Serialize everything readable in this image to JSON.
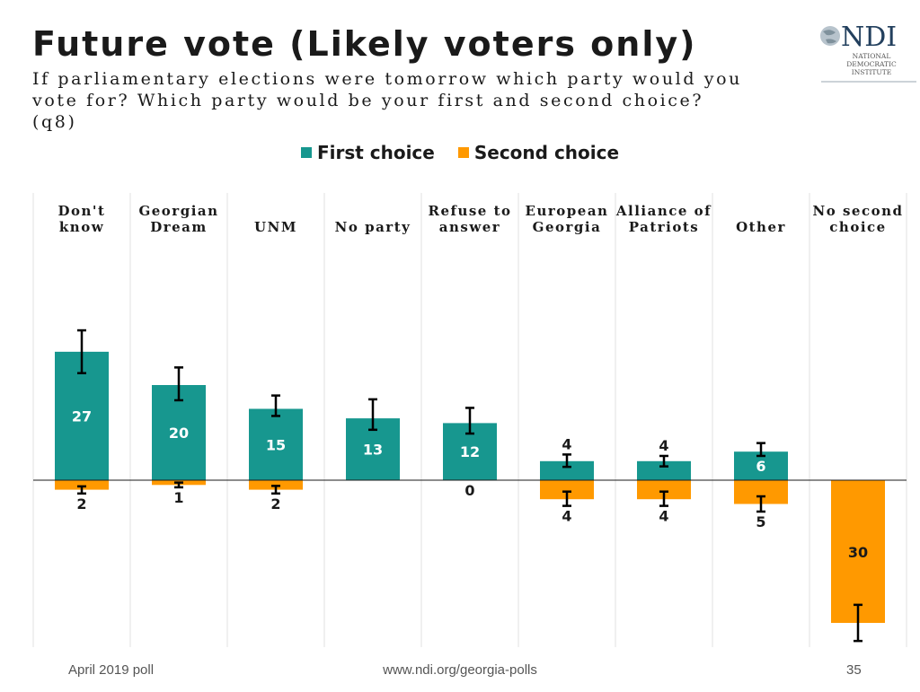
{
  "header": {
    "title": "Future vote (Likely voters only)",
    "subtitle": "If parliamentary elections were tomorrow which party would you vote for? Which party would be your first and second choice? (q8)"
  },
  "logo": {
    "text": "NDI",
    "lines": [
      "NATIONAL",
      "DEMOCRATIC",
      "INSTITUTE"
    ]
  },
  "footer": {
    "left": "April 2019 poll",
    "center": "www.ndi.org/georgia-polls",
    "right": "35"
  },
  "colors": {
    "first": "#17978f",
    "second": "#ff9900",
    "error": "#000000",
    "grid": "#e0e0e0"
  },
  "chart_data": {
    "type": "bar",
    "title": "Future vote (Likely voters only)",
    "categories": [
      [
        "Don't",
        "know"
      ],
      [
        "Georgian",
        "Dream"
      ],
      [
        "UNM"
      ],
      [
        "No party"
      ],
      [
        "Refuse to",
        "answer"
      ],
      [
        "European",
        "Georgia"
      ],
      [
        "Alliance of",
        "Patriots"
      ],
      [
        "Other"
      ],
      [
        "No second",
        "choice"
      ]
    ],
    "series": [
      {
        "name": "First choice",
        "values": [
          27,
          20,
          15,
          13,
          12,
          4,
          4,
          6,
          null
        ],
        "error_low": [
          22.5,
          16.8,
          13.5,
          10.6,
          9.8,
          2.8,
          2.9,
          5.1,
          null
        ],
        "error_high": [
          31.5,
          23.7,
          17.8,
          17.0,
          15.2,
          5.4,
          5.1,
          7.8,
          null
        ]
      },
      {
        "name": "Second choice",
        "values": [
          2,
          1,
          2,
          null,
          0,
          4,
          4,
          5,
          30
        ],
        "error_low": [
          1.3,
          0.5,
          1.2,
          null,
          0,
          2.4,
          2.4,
          3.4,
          26.2
        ],
        "error_high": [
          2.8,
          1.5,
          2.8,
          null,
          0,
          5.4,
          5.4,
          6.6,
          33.8
        ]
      }
    ],
    "legend_position": "top-center",
    "ylim": [
      -35,
      35
    ]
  }
}
